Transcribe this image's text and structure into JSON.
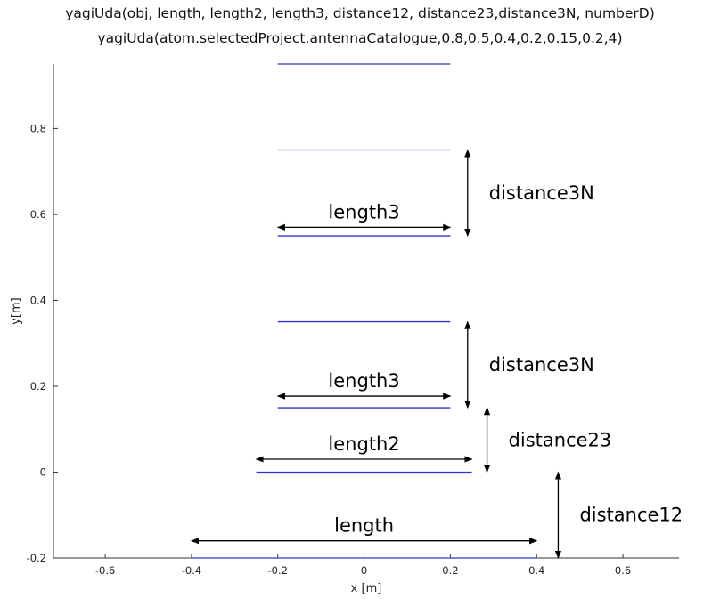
{
  "title_line1": "yagiUda(obj, length, length2, length3, distance12, distance23,distance3N, numberD)",
  "title_line2": "yagiUda(atom.selectedProject.antennaCatalogue,0.8,0.5,0.4,0.2,0.15,0.2,4)",
  "chart_data": {
    "type": "line",
    "xlabel": "x [m]",
    "ylabel": "y[m]",
    "xlim": [
      -0.72,
      0.73
    ],
    "ylim": [
      -0.2,
      0.95
    ],
    "xticks": [
      "-0.6",
      "-0.4",
      "-0.2",
      "0",
      "0.2",
      "0.4",
      "0.6"
    ],
    "yticks": [
      "-0.2",
      "0",
      "0.2",
      "0.4",
      "0.6",
      "0.8"
    ],
    "element_color": "#3333cc",
    "elements": [
      {
        "x1": -0.4,
        "x2": 0.4,
        "y": -0.2
      },
      {
        "x1": -0.25,
        "x2": 0.25,
        "y": 0.0
      },
      {
        "x1": -0.2,
        "x2": 0.2,
        "y": 0.15
      },
      {
        "x1": -0.2,
        "x2": 0.2,
        "y": 0.35
      },
      {
        "x1": -0.2,
        "x2": 0.2,
        "y": 0.55
      },
      {
        "x1": -0.2,
        "x2": 0.2,
        "y": 0.75
      },
      {
        "x1": -0.2,
        "x2": 0.2,
        "y": 0.95
      }
    ],
    "annotations": [
      {
        "label": "length",
        "dir": "h",
        "from": -0.4,
        "to": 0.4,
        "at": -0.16
      },
      {
        "label": "length2",
        "dir": "h",
        "from": -0.25,
        "to": 0.25,
        "at": 0.03
      },
      {
        "label": "length3",
        "dir": "h",
        "from": -0.2,
        "to": 0.2,
        "at": 0.177
      },
      {
        "label": "length3",
        "dir": "h",
        "from": -0.2,
        "to": 0.2,
        "at": 0.57
      },
      {
        "label": "distance12",
        "dir": "v",
        "from": -0.2,
        "to": 0.0,
        "at": 0.45
      },
      {
        "label": "distance23",
        "dir": "v",
        "from": 0.0,
        "to": 0.15,
        "at": 0.285
      },
      {
        "label": "distance3N",
        "dir": "v",
        "from": 0.15,
        "to": 0.35,
        "at": 0.24
      },
      {
        "label": "distance3N",
        "dir": "v",
        "from": 0.55,
        "to": 0.75,
        "at": 0.24
      }
    ]
  }
}
